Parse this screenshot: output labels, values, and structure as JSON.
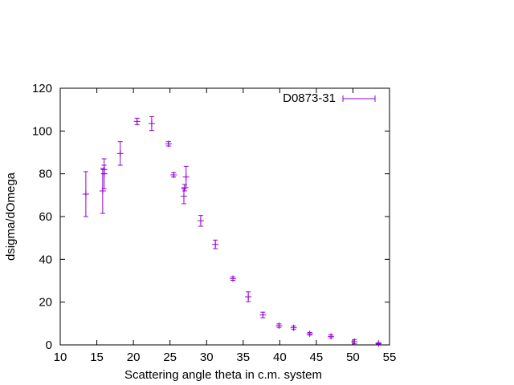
{
  "chart_data": {
    "type": "scatter",
    "title": "",
    "xlabel": "Scattering angle theta in c.m. system",
    "ylabel": "dsigma/dOmega",
    "xlim": [
      10,
      55
    ],
    "ylim": [
      0,
      120
    ],
    "xticks": [
      "10",
      "15",
      "20",
      "25",
      "30",
      "35",
      "40",
      "45",
      "50",
      "55"
    ],
    "yticks": [
      "0",
      "20",
      "40",
      "60",
      "80",
      "100",
      "120"
    ],
    "grid": false,
    "legend_position": "top-right",
    "series": [
      {
        "name": "D0873-31",
        "color": "#9400d3",
        "points": [
          {
            "x": 13.5,
            "y": 70.5,
            "err": 10.5
          },
          {
            "x": 15.8,
            "y": 72.0,
            "err": 10.5
          },
          {
            "x": 16.0,
            "y": 80.0,
            "err": 7.0
          },
          {
            "x": 16.0,
            "y": 82.0,
            "err": 2.0
          },
          {
            "x": 18.2,
            "y": 89.5,
            "err": 5.5
          },
          {
            "x": 20.5,
            "y": 104.5,
            "err": 1.5
          },
          {
            "x": 22.5,
            "y": 103.5,
            "err": 3.2
          },
          {
            "x": 24.8,
            "y": 94.0,
            "err": 1.0
          },
          {
            "x": 25.5,
            "y": 79.5,
            "err": 1.0
          },
          {
            "x": 26.9,
            "y": 69.5,
            "err": 3.5
          },
          {
            "x": 27.0,
            "y": 73.5,
            "err": 1.5
          },
          {
            "x": 27.2,
            "y": 78.5,
            "err": 5.0
          },
          {
            "x": 29.2,
            "y": 58.0,
            "err": 2.5
          },
          {
            "x": 31.2,
            "y": 47.0,
            "err": 2.0
          },
          {
            "x": 33.6,
            "y": 31.0,
            "err": 0.8
          },
          {
            "x": 35.7,
            "y": 22.5,
            "err": 2.3
          },
          {
            "x": 37.7,
            "y": 14.0,
            "err": 1.3
          },
          {
            "x": 39.9,
            "y": 9.0,
            "err": 0.8
          },
          {
            "x": 41.9,
            "y": 8.0,
            "err": 0.8
          },
          {
            "x": 44.1,
            "y": 5.2,
            "err": 0.6
          },
          {
            "x": 47.0,
            "y": 4.0,
            "err": 0.7
          },
          {
            "x": 50.2,
            "y": 1.5,
            "err": 1.0
          },
          {
            "x": 53.5,
            "y": 0.7,
            "err": 0.3
          }
        ]
      }
    ]
  }
}
